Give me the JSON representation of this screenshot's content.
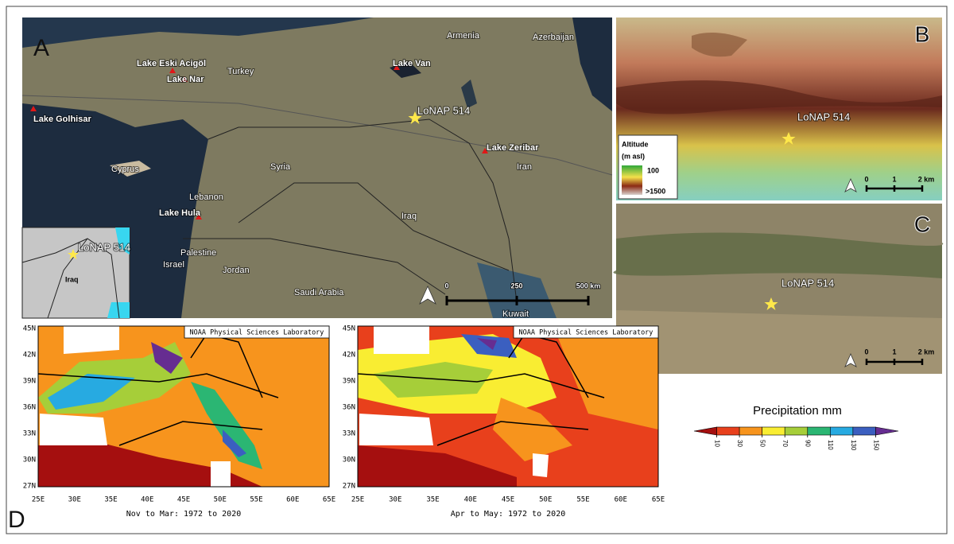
{
  "panel_a": {
    "label": "A",
    "places": [
      "Armenia",
      "Azerbaijan",
      "Lake Eski Acigöl",
      "Lake Nar",
      "Turkey",
      "Lake Van",
      "Lake Golhisar",
      "LoNAP 514",
      "Lake Zeribar",
      "Cyprus",
      "Syria",
      "Iran",
      "Lebanon",
      "Lake Hula",
      "Iraq",
      "Palestine",
      "Israel",
      "Jordan",
      "Saudi Arabia",
      "Kuwait"
    ],
    "inset": {
      "site": "LoNAP 514",
      "country": "Iraq"
    },
    "scale": [
      "0",
      "250",
      "500 km"
    ]
  },
  "panel_b": {
    "label": "B",
    "site": "LoNAP 514",
    "legend": {
      "title": "Altitude",
      "unit": "(m asl)",
      "low": "100",
      "high": ">1500"
    },
    "scale": [
      "0",
      "1",
      "2 km"
    ]
  },
  "panel_c": {
    "label": "C",
    "site": "LoNAP 514",
    "scale": [
      "0",
      "1",
      "2 km"
    ]
  },
  "panel_d": {
    "label": "D",
    "source": "NOAA Physical Sciences Laboratory",
    "lat_ticks": [
      "45N",
      "42N",
      "39N",
      "36N",
      "33N",
      "30N",
      "27N"
    ],
    "lon_ticks": [
      "25E",
      "30E",
      "35E",
      "40E",
      "45E",
      "50E",
      "55E",
      "60E",
      "65E"
    ],
    "maps": [
      {
        "caption": "Nov to Mar: 1972 to 2020"
      },
      {
        "caption": "Apr to May: 1972 to 2020"
      }
    ],
    "colorbar": {
      "title": "Precipitation mm",
      "ticks": [
        10,
        30,
        50,
        70,
        90,
        110,
        130,
        150
      ],
      "colors": [
        "#a50f0f",
        "#e8401c",
        "#f7941d",
        "#f9ed32",
        "#a6ce39",
        "#2bb673",
        "#27aae1",
        "#3b5fc0",
        "#662d91"
      ]
    }
  }
}
